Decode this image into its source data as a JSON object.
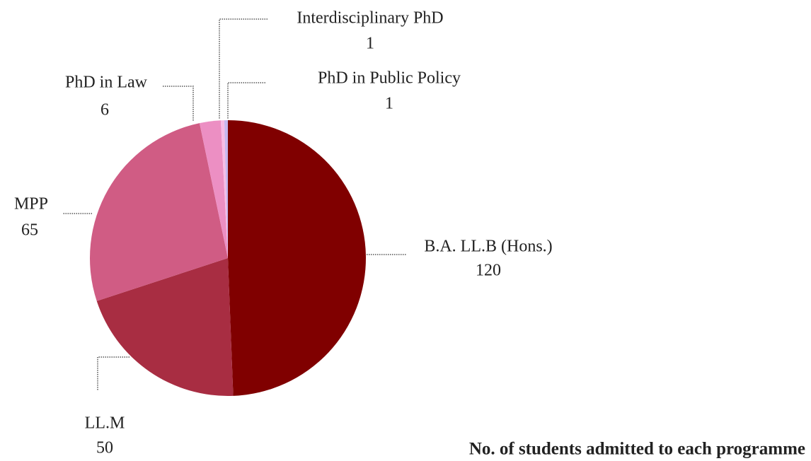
{
  "chart_data": {
    "type": "pie",
    "title": "No. of students admitted to each programme",
    "categories": [
      "B.A. LL.B (Hons.)",
      "LL.M",
      "MPP",
      "PhD in Law",
      "Interdisciplinary PhD",
      "PhD in Public Policy"
    ],
    "values": [
      120,
      50,
      65,
      6,
      1,
      1
    ],
    "colors": [
      "#800000",
      "#a82d42",
      "#d05c84",
      "#ec8fc3",
      "#f7bce6",
      "#c6b7ef"
    ]
  }
}
